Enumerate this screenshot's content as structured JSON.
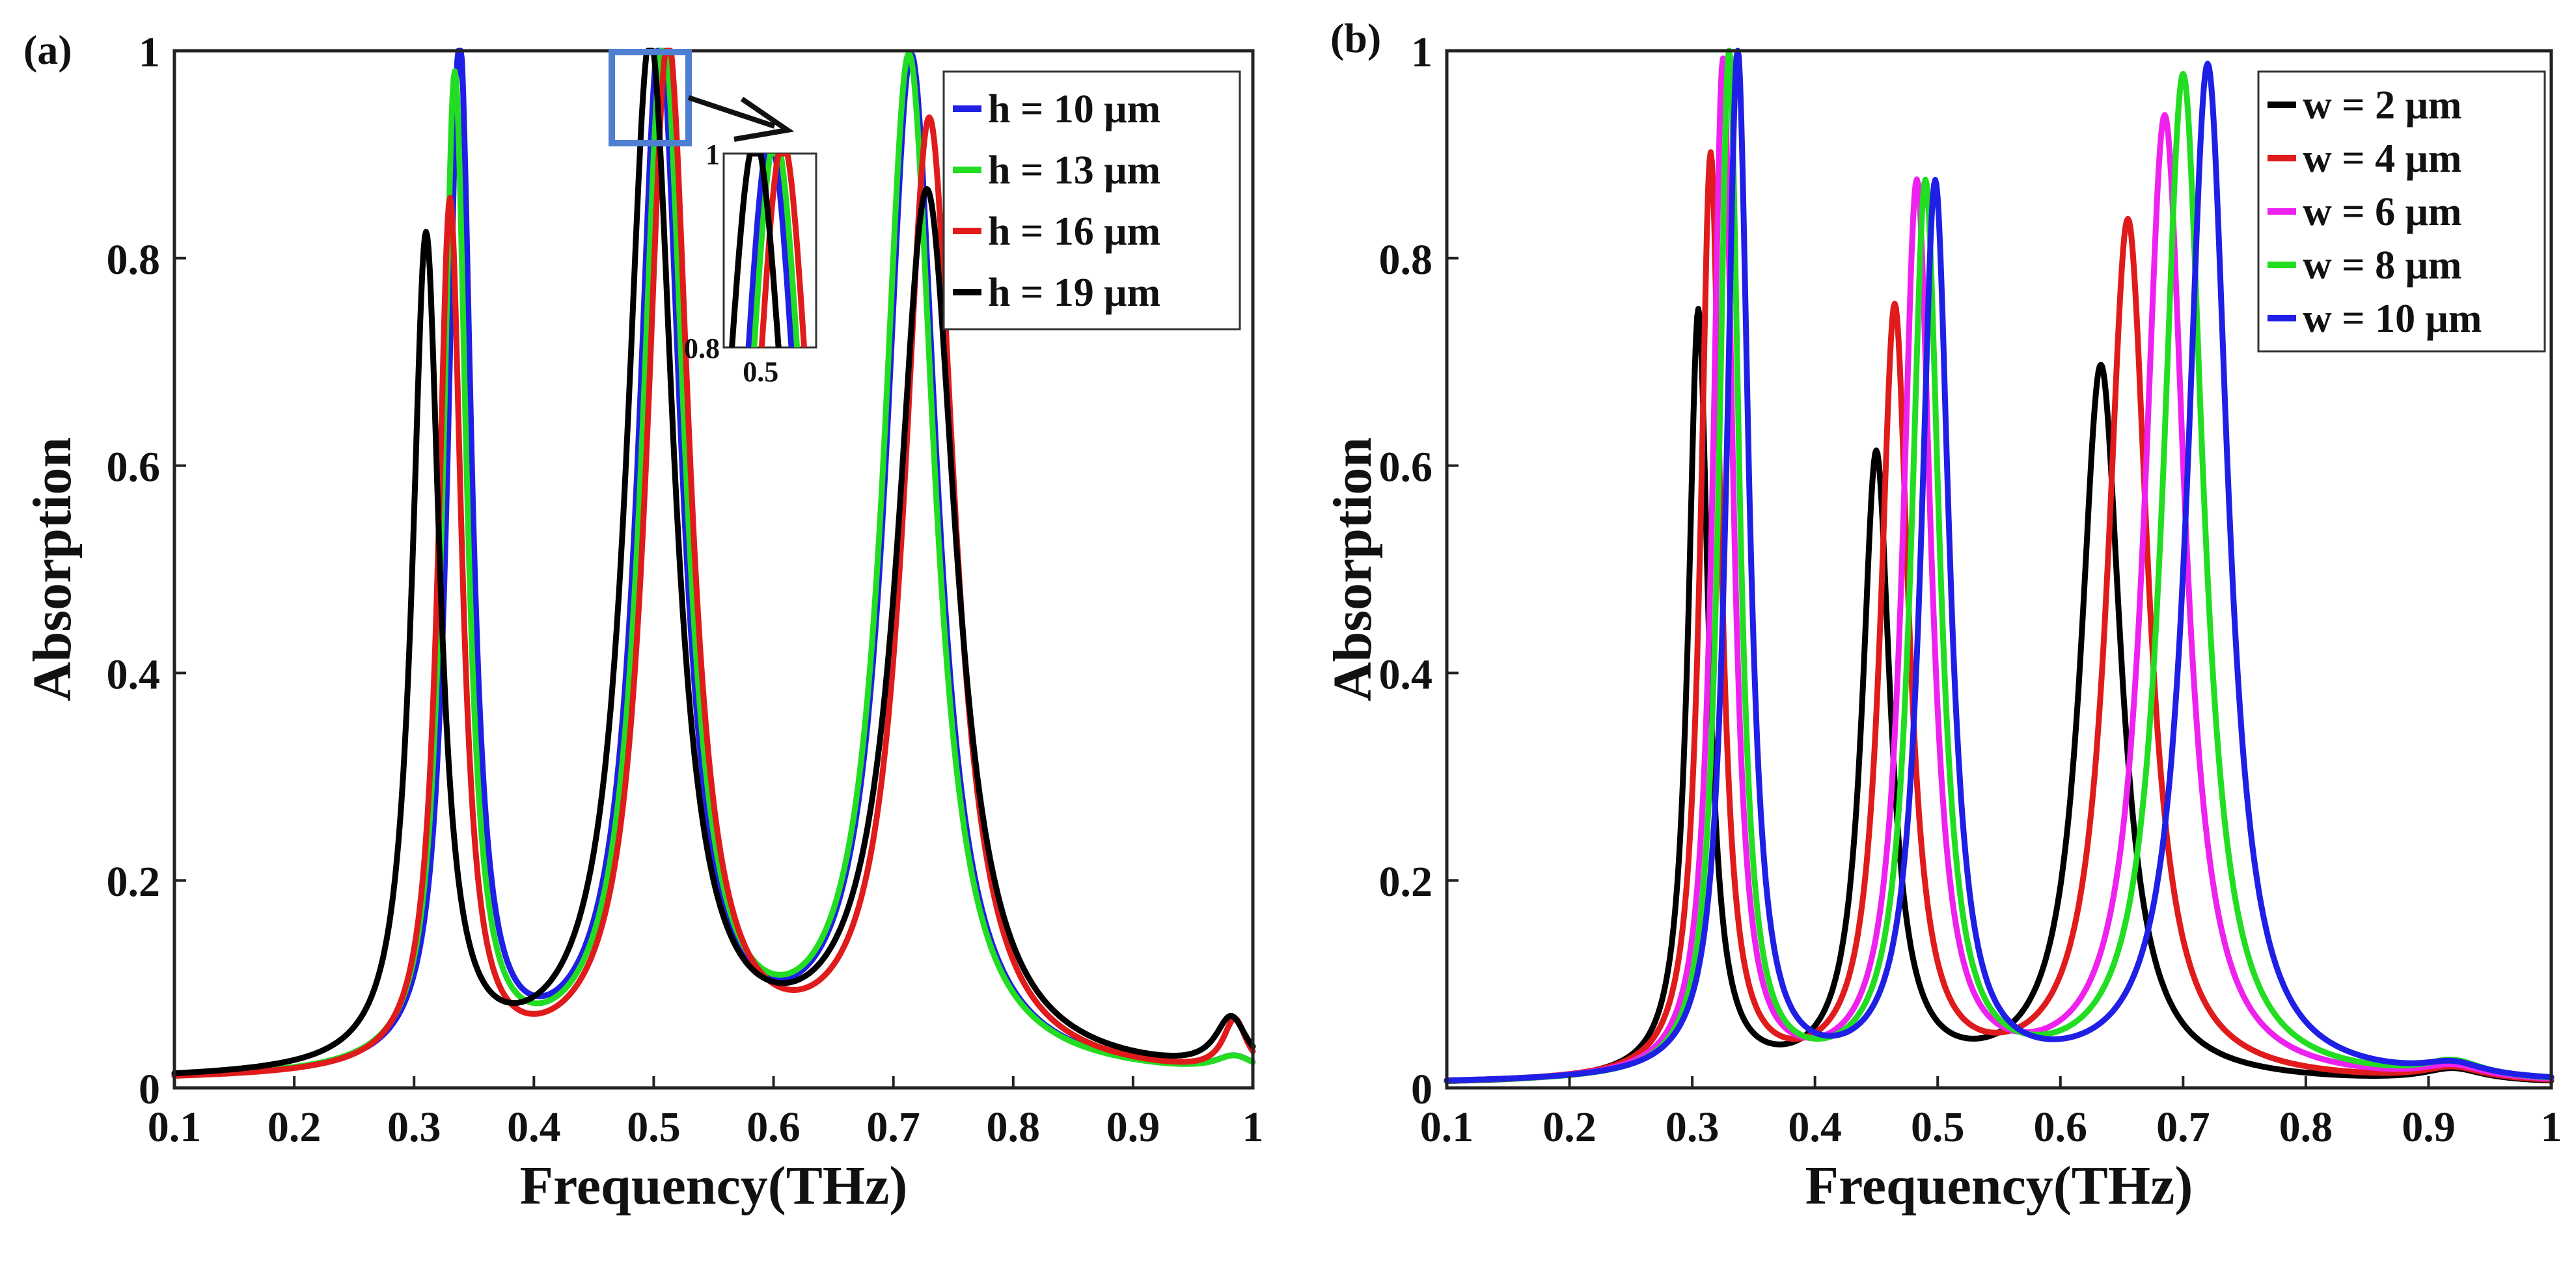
{
  "chart_data": [
    {
      "type": "line",
      "panel_label": "(a)",
      "xlabel": "Frequency(THz)",
      "ylabel": "Absorption",
      "xlim": [
        0.1,
        1.0
      ],
      "ylim": [
        0,
        1.0
      ],
      "x_ticks": [
        "0.1",
        "0.2",
        "0.3",
        "0.4",
        "0.5",
        "0.6",
        "0.7",
        "0.8",
        "0.9",
        "1"
      ],
      "y_ticks": [
        "0",
        "0.2",
        "0.4",
        "0.6",
        "0.8",
        "1"
      ],
      "legend_position": "top-right",
      "series": [
        {
          "name": "h = 10 μm",
          "color": "#1f1fe6",
          "peaks": [
            [
              0.338,
              0.99,
              0.012
            ],
            [
              0.505,
              0.99,
              0.022
            ],
            [
              0.715,
              0.98,
              0.026
            ],
            [
              0.985,
              0.015,
              0.02
            ]
          ],
          "baseline": 0.005
        },
        {
          "name": "h = 13 μm",
          "color": "#22dd22",
          "peaks": [
            [
              0.334,
              0.955,
              0.012
            ],
            [
              0.508,
              0.99,
              0.022
            ],
            [
              0.713,
              0.98,
              0.026
            ],
            [
              0.985,
              0.015,
              0.02
            ]
          ],
          "baseline": 0.005
        },
        {
          "name": "h = 16 μm",
          "color": "#e01b1b",
          "peaks": [
            [
              0.33,
              0.835,
              0.012
            ],
            [
              0.512,
              0.99,
              0.022
            ],
            [
              0.73,
              0.92,
              0.026
            ],
            [
              0.985,
              0.05,
              0.012
            ]
          ],
          "baseline": 0.005
        },
        {
          "name": "h = 19 μm",
          "color": "#000000",
          "peaks": [
            [
              0.31,
              0.8,
              0.014
            ],
            [
              0.497,
              0.99,
              0.024
            ],
            [
              0.728,
              0.85,
              0.03
            ],
            [
              0.982,
              0.05,
              0.016
            ]
          ],
          "baseline": 0.005
        }
      ],
      "inset": {
        "x_tick": "0.5",
        "y_ticks": [
          "0.8",
          "1"
        ],
        "xlim": [
          0.48,
          0.53
        ],
        "ylim": [
          0.8,
          1.0
        ]
      }
    },
    {
      "type": "line",
      "panel_label": "(b)",
      "xlabel": "Frequency(THz)",
      "ylabel": "Absorption",
      "xlim": [
        0.1,
        1.0
      ],
      "ylim": [
        0,
        1.0
      ],
      "x_ticks": [
        "0.1",
        "0.2",
        "0.3",
        "0.4",
        "0.5",
        "0.6",
        "0.7",
        "0.8",
        "0.9",
        "1"
      ],
      "y_ticks": [
        "0",
        "0.2",
        "0.4",
        "0.6",
        "0.8",
        "1"
      ],
      "legend_position": "top-right",
      "series": [
        {
          "name": "w = 2 μm",
          "color": "#000000",
          "peaks": [
            [
              0.305,
              0.74,
              0.01
            ],
            [
              0.45,
              0.6,
              0.014
            ],
            [
              0.633,
              0.69,
              0.02
            ],
            [
              0.92,
              0.012,
              0.03
            ]
          ],
          "baseline": 0.003
        },
        {
          "name": "w = 4 μm",
          "color": "#e01b1b",
          "peaks": [
            [
              0.315,
              0.89,
              0.01
            ],
            [
              0.465,
              0.74,
              0.014
            ],
            [
              0.655,
              0.83,
              0.02
            ],
            [
              0.92,
              0.012,
              0.03
            ]
          ],
          "baseline": 0.003
        },
        {
          "name": "w = 6 μm",
          "color": "#ee22ee",
          "peaks": [
            [
              0.325,
              0.98,
              0.01
            ],
            [
              0.483,
              0.86,
              0.014
            ],
            [
              0.685,
              0.93,
              0.02
            ],
            [
              0.92,
              0.012,
              0.03
            ]
          ],
          "baseline": 0.003
        },
        {
          "name": "w = 8 μm",
          "color": "#22dd22",
          "peaks": [
            [
              0.33,
              0.99,
              0.01
            ],
            [
              0.49,
              0.86,
              0.014
            ],
            [
              0.7,
              0.97,
              0.02
            ],
            [
              0.92,
              0.015,
              0.03
            ]
          ],
          "baseline": 0.003
        },
        {
          "name": "w = 10 μm",
          "color": "#1f1fe6",
          "peaks": [
            [
              0.337,
              0.99,
              0.011
            ],
            [
              0.498,
              0.86,
              0.014
            ],
            [
              0.72,
              0.98,
              0.02
            ],
            [
              0.92,
              0.012,
              0.03
            ]
          ],
          "baseline": 0.003
        }
      ]
    }
  ]
}
